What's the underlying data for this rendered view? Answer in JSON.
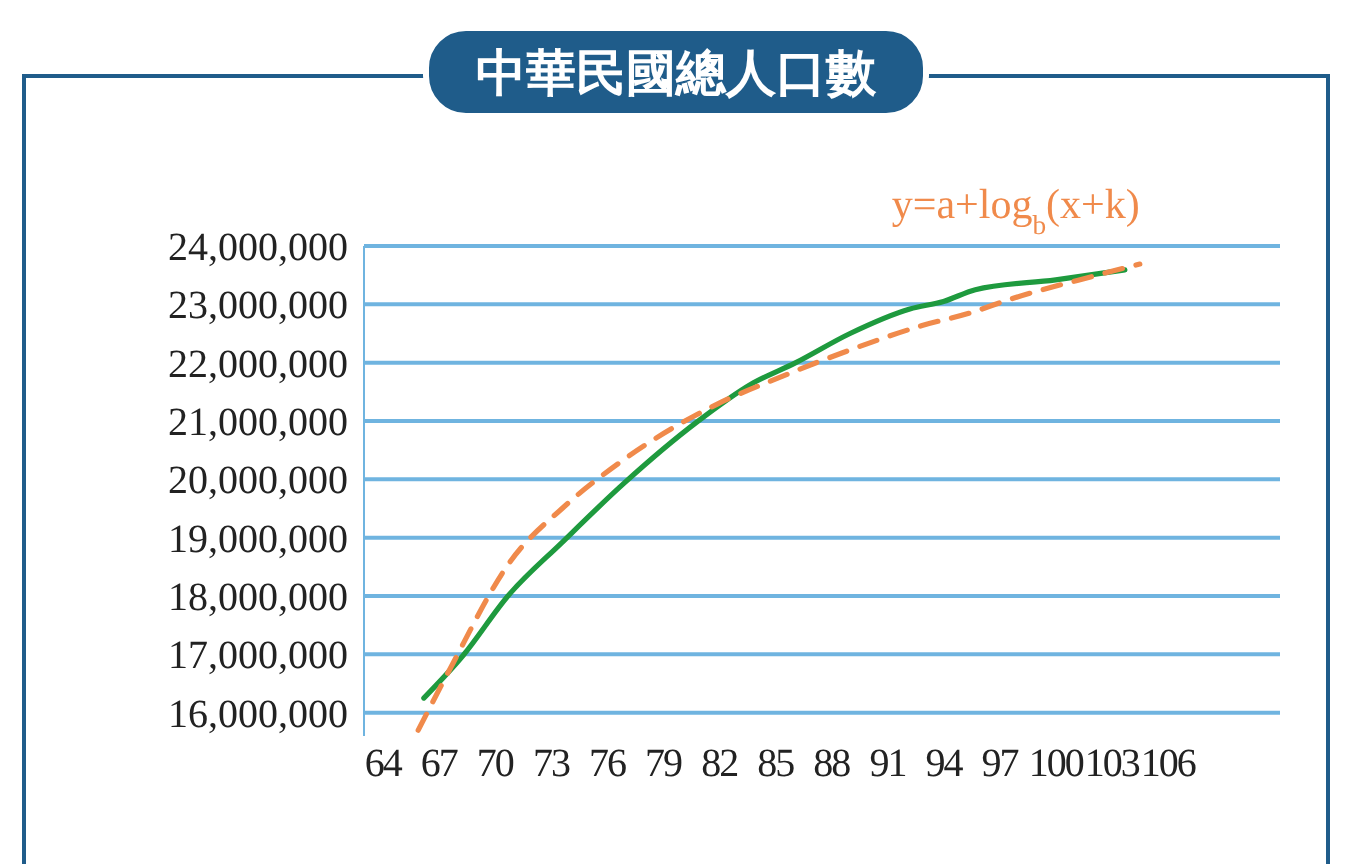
{
  "chart_data": {
    "type": "line",
    "title": "中華民國總人口數",
    "xlim": [
      63,
      112
    ],
    "xticks": [
      64,
      67,
      70,
      73,
      76,
      79,
      82,
      85,
      88,
      91,
      94,
      97,
      100,
      103,
      106
    ],
    "ylim": [
      15600000,
      24000000
    ],
    "yticks": [
      {
        "value": 16000000,
        "label": "16,000,000"
      },
      {
        "value": 17000000,
        "label": "17,000,000"
      },
      {
        "value": 18000000,
        "label": "18,000,000"
      },
      {
        "value": 19000000,
        "label": "19,000,000"
      },
      {
        "value": 20000000,
        "label": "20,000,000"
      },
      {
        "value": 21000000,
        "label": "21,000,000"
      },
      {
        "value": 22000000,
        "label": "22,000,000"
      },
      {
        "value": 23000000,
        "label": "23,000,000"
      },
      {
        "value": 24000000,
        "label": "24,000,000"
      }
    ],
    "grid": "y",
    "series": [
      {
        "color": "#1e9a3e",
        "line_style": "solid",
        "x": [
          66.2,
          68.3,
          70.7,
          73.6,
          76.9,
          80.8,
          83.7,
          86.1,
          89,
          92.2,
          94,
          95.7,
          100,
          103.7
        ],
        "values": [
          16250000,
          16980000,
          18000000,
          18920000,
          19930000,
          20980000,
          21630000,
          22000000,
          22500000,
          22920000,
          23050000,
          23250000,
          23420000,
          23590000
        ]
      },
      {
        "name": "y=a+log$_{b}$(x+k)",
        "color": "#f08a4b",
        "line_style": "dashed",
        "x": [
          65.9,
          67.6,
          70.8,
          73.7,
          76.6,
          81.9,
          85.1,
          88.6,
          92.9,
          95.4,
          97.5,
          102.1,
          104.5
        ],
        "values": [
          15700000,
          16750000,
          18580000,
          19530000,
          20270000,
          21290000,
          21730000,
          22170000,
          22640000,
          22850000,
          23080000,
          23490000,
          23690000
        ]
      }
    ]
  }
}
